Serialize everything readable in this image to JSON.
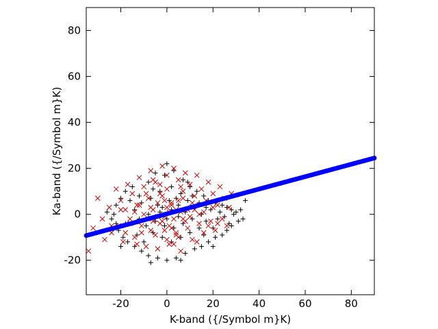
{
  "chart_data": {
    "type": "scatter",
    "title": "",
    "xlabel": "K-band ({/Symbol m}K)",
    "ylabel": "Ka-band ({/Symbol m}K)",
    "xlim": [
      -35,
      90
    ],
    "ylim": [
      -35,
      90
    ],
    "xticks": [
      -20,
      0,
      20,
      40,
      60,
      80
    ],
    "yticks": [
      -20,
      0,
      20,
      40,
      60,
      80
    ],
    "grid": false,
    "legend": "none",
    "series": [
      {
        "marker": "plus",
        "color": "#000000",
        "values": [
          [
            -12,
            8
          ],
          [
            -8,
            14
          ],
          [
            -5,
            18
          ],
          [
            0,
            22
          ],
          [
            3,
            19
          ],
          [
            7,
            15
          ],
          [
            10,
            12
          ],
          [
            13,
            10
          ],
          [
            16,
            8
          ],
          [
            18,
            6
          ],
          [
            21,
            5
          ],
          [
            24,
            4
          ],
          [
            26,
            3
          ],
          [
            28,
            2
          ],
          [
            30,
            1
          ],
          [
            31,
            -3
          ],
          [
            28,
            -5
          ],
          [
            26,
            -7
          ],
          [
            24,
            -9
          ],
          [
            21,
            -10
          ],
          [
            18,
            -12
          ],
          [
            15,
            -14
          ],
          [
            12,
            -15
          ],
          [
            8,
            -17
          ],
          [
            4,
            -19
          ],
          [
            0,
            -20
          ],
          [
            -4,
            -19
          ],
          [
            -8,
            -18
          ],
          [
            -11,
            -16
          ],
          [
            -14,
            -14
          ],
          [
            -17,
            -12
          ],
          [
            -19,
            -10
          ],
          [
            -21,
            -7
          ],
          [
            -22,
            -4
          ],
          [
            -23,
            0
          ],
          [
            -22,
            4
          ],
          [
            -20,
            7
          ],
          [
            -18,
            10
          ],
          [
            -15,
            12
          ],
          [
            -3,
            10
          ],
          [
            2,
            12
          ],
          [
            6,
            9
          ],
          [
            9,
            6
          ],
          [
            12,
            3
          ],
          [
            15,
            0
          ],
          [
            17,
            -3
          ],
          [
            14,
            -6
          ],
          [
            10,
            -8
          ],
          [
            6,
            -10
          ],
          [
            2,
            -12
          ],
          [
            -2,
            -10
          ],
          [
            -6,
            -8
          ],
          [
            -9,
            -5
          ],
          [
            -12,
            -2
          ],
          [
            -14,
            2
          ],
          [
            -11,
            5
          ],
          [
            -7,
            7
          ],
          [
            -4,
            4
          ],
          [
            1,
            6
          ],
          [
            5,
            4
          ],
          [
            8,
            1
          ],
          [
            11,
            -2
          ],
          [
            7,
            -4
          ],
          [
            3,
            -6
          ],
          [
            -1,
            -5
          ],
          [
            -5,
            -3
          ],
          [
            -8,
            0
          ],
          [
            -3,
            1
          ],
          [
            2,
            2
          ],
          [
            5,
            -1
          ],
          [
            0,
            -2
          ],
          [
            -2,
            3
          ],
          [
            4,
            7
          ],
          [
            -6,
            11
          ],
          [
            9,
            14
          ],
          [
            19,
            2
          ],
          [
            22,
            -2
          ],
          [
            20,
            -6
          ],
          [
            16,
            -9
          ],
          [
            -16,
            6
          ],
          [
            -18,
            -4
          ],
          [
            -13,
            -9
          ],
          [
            -10,
            -12
          ],
          [
            11,
            8
          ],
          [
            14,
            5
          ],
          [
            17,
            3
          ],
          [
            23,
            1
          ],
          [
            25,
            -1
          ],
          [
            27,
            -4
          ],
          [
            29,
            0
          ],
          [
            32,
            2
          ],
          [
            34,
            6
          ],
          [
            33,
            -2
          ],
          [
            -24,
            -2
          ],
          [
            -26,
            1
          ],
          [
            -20,
            -14
          ],
          [
            -7,
            -21
          ],
          [
            6,
            -20
          ],
          [
            20,
            -14
          ],
          [
            -1,
            17
          ]
        ]
      },
      {
        "marker": "cross",
        "color": "#cc0000",
        "values": [
          [
            -34,
            -16
          ],
          [
            -32,
            -6
          ],
          [
            -30,
            7
          ],
          [
            -28,
            -2
          ],
          [
            -27,
            -11
          ],
          [
            -25,
            3
          ],
          [
            -24,
            -8
          ],
          [
            -22,
            11
          ],
          [
            -21,
            -5
          ],
          [
            -20,
            6
          ],
          [
            -19,
            -12
          ],
          [
            -18,
            2
          ],
          [
            -17,
            13
          ],
          [
            -16,
            -4
          ],
          [
            -15,
            9
          ],
          [
            -14,
            -10
          ],
          [
            -13,
            4
          ],
          [
            -12,
            16
          ],
          [
            -11,
            -8
          ],
          [
            -10,
            12
          ],
          [
            -9,
            -14
          ],
          [
            -8,
            7
          ],
          [
            -7,
            19
          ],
          [
            -6,
            -3
          ],
          [
            -5,
            14
          ],
          [
            -4,
            -15
          ],
          [
            -3,
            9
          ],
          [
            -2,
            21
          ],
          [
            -1,
            -7
          ],
          [
            0,
            17
          ],
          [
            1,
            -13
          ],
          [
            2,
            5
          ],
          [
            3,
            20
          ],
          [
            4,
            -9
          ],
          [
            5,
            15
          ],
          [
            6,
            -16
          ],
          [
            7,
            10
          ],
          [
            8,
            18
          ],
          [
            9,
            -6
          ],
          [
            10,
            13
          ],
          [
            11,
            -11
          ],
          [
            12,
            8
          ],
          [
            13,
            17
          ],
          [
            14,
            -4
          ],
          [
            15,
            11
          ],
          [
            16,
            -8
          ],
          [
            17,
            6
          ],
          [
            18,
            14
          ],
          [
            19,
            -3
          ],
          [
            20,
            9
          ],
          [
            21,
            -7
          ],
          [
            22,
            4
          ],
          [
            23,
            12
          ],
          [
            24,
            -2
          ],
          [
            25,
            7
          ],
          [
            26,
            -5
          ],
          [
            27,
            3
          ],
          [
            28,
            9
          ],
          [
            -6,
            2
          ],
          [
            -3,
            -4
          ],
          [
            0,
            3
          ],
          [
            3,
            -2
          ],
          [
            6,
            1
          ],
          [
            -8,
            -2
          ],
          [
            9,
            2
          ],
          [
            -4,
            5
          ],
          [
            2,
            -6
          ],
          [
            5,
            6
          ],
          [
            -1,
            -1
          ],
          [
            1,
            1
          ],
          [
            -10,
            0
          ],
          [
            10,
            -1
          ],
          [
            -12,
            4
          ],
          [
            12,
            2
          ],
          [
            -2,
            8
          ],
          [
            4,
            -8
          ],
          [
            -7,
            -7
          ],
          [
            7,
            7
          ],
          [
            -14,
            1
          ],
          [
            14,
            0
          ],
          [
            -5,
            -9
          ],
          [
            5,
            -10
          ],
          [
            -9,
            9
          ],
          [
            8,
            -3
          ],
          [
            -11,
            -5
          ],
          [
            11,
            5
          ],
          [
            0,
            -11
          ],
          [
            0,
            11
          ],
          [
            -16,
            -2
          ],
          [
            16,
            1
          ],
          [
            -3,
            13
          ],
          [
            3,
            -13
          ],
          [
            -18,
            -8
          ],
          [
            18,
            -5
          ],
          [
            -20,
            2
          ],
          [
            20,
            3
          ],
          [
            -6,
            15
          ],
          [
            6,
            12
          ],
          [
            -13,
            -13
          ],
          [
            13,
            -12
          ],
          [
            -24,
            -5
          ],
          [
            22,
            -4
          ],
          [
            -1,
            6
          ],
          [
            1,
            -5
          ],
          [
            -4,
            -1
          ],
          [
            4,
            2
          ],
          [
            -7,
            3
          ],
          [
            7,
            -2
          ],
          [
            -2,
            -3
          ],
          [
            2,
            4
          ]
        ]
      },
      {
        "marker": "dot",
        "color": "#0000ff",
        "x_range": [
          -35,
          90
        ],
        "slope": 0.27,
        "intercept": 0.2
      }
    ]
  }
}
